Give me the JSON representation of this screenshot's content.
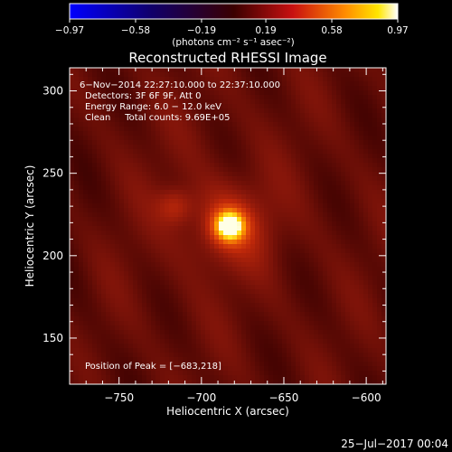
{
  "chart_data": {
    "type": "heatmap",
    "title": "Reconstructed RHESSI Image",
    "xlabel": "Heliocentric X (arcsec)",
    "ylabel": "Heliocentric Y (arcsec)",
    "xlim": [
      -780,
      -588
    ],
    "ylim": [
      122,
      314
    ],
    "x_ticks": [
      {
        "value": -750,
        "label": "−750"
      },
      {
        "value": -700,
        "label": "−700"
      },
      {
        "value": -650,
        "label": "−650"
      },
      {
        "value": -600,
        "label": "−600"
      }
    ],
    "y_ticks": [
      {
        "value": 150,
        "label": "150"
      },
      {
        "value": 200,
        "label": "200"
      },
      {
        "value": 250,
        "label": "250"
      },
      {
        "value": 300,
        "label": "300"
      }
    ],
    "colorbar": {
      "range": [
        -0.97,
        0.97
      ],
      "ticks": [
        {
          "value": -0.97,
          "label": "−0.97"
        },
        {
          "value": -0.58,
          "label": "−0.58"
        },
        {
          "value": -0.19,
          "label": "−0.19"
        },
        {
          "value": 0.19,
          "label": "0.19"
        },
        {
          "value": 0.58,
          "label": "0.58"
        },
        {
          "value": 0.97,
          "label": "0.97"
        }
      ],
      "unit_label": "(photons cm⁻² s⁻¹ asec⁻²)"
    },
    "annotations": [
      "6−Nov−2014 22:27:10.000 to 22:37:10.000",
      "Detectors: 3F 6F 9F, Att 0",
      "Energy Range: 6.0 − 12.0 keV",
      "Clean     Total counts: 9.69E+05"
    ],
    "peak_label": "Position of Peak = [−683,218]",
    "peak": {
      "x": -683,
      "y": 218,
      "value": 0.97
    },
    "secondary_source": {
      "x": -716,
      "y": 230,
      "value": 0.42
    },
    "background_level": 0.2
  },
  "footer": {
    "date": "25−Jul−2017 00:04"
  },
  "colors": {
    "background": "#000000",
    "text": "#ffffff"
  }
}
